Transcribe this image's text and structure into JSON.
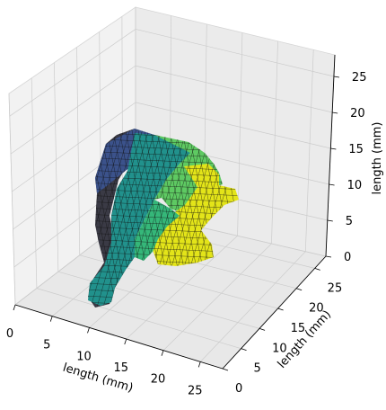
{
  "chart_data": {
    "type": "surface",
    "title": "",
    "xlabel": "length (mm)",
    "ylabel": "length (mm)",
    "zlabel": "length (mm)",
    "x_ticks": [
      "0",
      "5",
      "10",
      "15",
      "20",
      "25"
    ],
    "y_ticks": [
      "0",
      "5",
      "10",
      "15",
      "20",
      "25"
    ],
    "z_ticks": [
      "0",
      "5",
      "10",
      "15",
      "20",
      "25"
    ],
    "xlim": [
      0,
      28
    ],
    "ylim": [
      0,
      28
    ],
    "zlim": [
      0,
      28
    ],
    "grid": true,
    "colormap": "viridis",
    "pane_color": "#f2f2f2",
    "grid_color": "#cccccc",
    "edge_color": "#111111"
  }
}
